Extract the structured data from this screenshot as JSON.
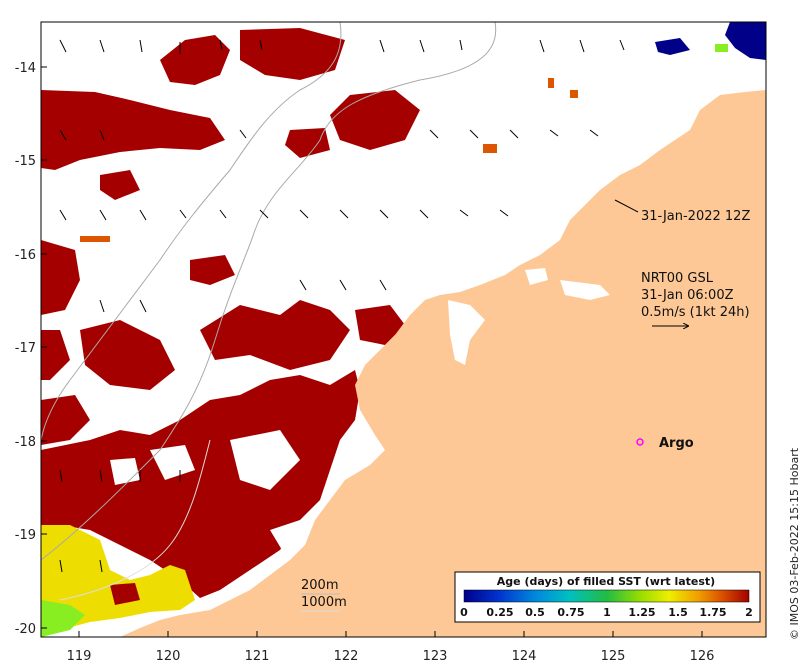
{
  "map": {
    "lon_ticks": [
      "119",
      "120",
      "121",
      "122",
      "123",
      "124",
      "125",
      "126"
    ],
    "lat_ticks": [
      "-14",
      "-15",
      "-16",
      "-17",
      "-18",
      "-19",
      "-20"
    ],
    "lon_range": [
      118.6,
      126.7
    ],
    "lat_range": [
      -20.2,
      -13.5
    ]
  },
  "annotations": {
    "timestamp": "31-Jan-2022 12Z",
    "wind_model": "NRT00 GSL",
    "wind_time": "31-Jan 06:00Z",
    "wind_scale": "0.5m/s (1kt 24h)",
    "argo": "Argo",
    "contour_200": "200m",
    "contour_1000": "1000m"
  },
  "colorbar": {
    "title": "Age (days) of filled SST (wrt latest)",
    "ticks": [
      "0",
      "0.25",
      "0.5",
      "0.75",
      "1",
      "1.25",
      "1.5",
      "1.75",
      "2"
    ],
    "colors": [
      "#00008b",
      "#0033cc",
      "#0088dd",
      "#00c0c0",
      "#22bb44",
      "#99dd00",
      "#eeee00",
      "#f0a000",
      "#dd5500",
      "#a30000"
    ]
  },
  "credit": "© IMOS 03-Feb-2022 15:15 Hobart",
  "colors": {
    "land": "#fdc896",
    "sst_old": "#a50000",
    "sst_mid": "#eedd00",
    "sst_green": "#88ee22",
    "sst_new": "#000088",
    "argo_marker": "#ff00ff"
  }
}
